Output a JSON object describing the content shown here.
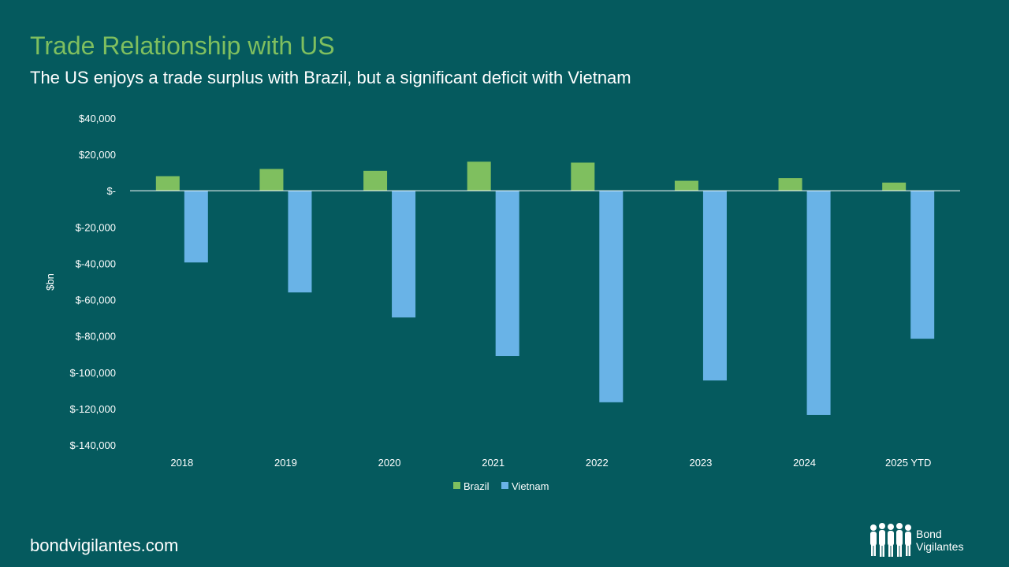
{
  "header": {
    "title": "Trade Relationship with US",
    "subtitle": "The US enjoys a trade surplus with Brazil, but a significant deficit with Vietnam"
  },
  "footer": {
    "url": "bondvigilantes.com",
    "logo_line1": "Bond",
    "logo_line2": "Vigilantes"
  },
  "colors": {
    "background": "#055a5e",
    "title": "#7fbf5f",
    "brazil": "#7fbf5f",
    "vietnam": "#69b3e7",
    "text": "#ffffff"
  },
  "chart_data": {
    "type": "bar",
    "title": "",
    "xlabel": "",
    "ylabel": "$bn",
    "categories": [
      "2018",
      "2019",
      "2020",
      "2021",
      "2022",
      "2023",
      "2024",
      "2025 YTD"
    ],
    "series": [
      {
        "name": "Brazil",
        "values": [
          8000,
          12000,
          11000,
          16000,
          15500,
          5500,
          7000,
          4500
        ]
      },
      {
        "name": "Vietnam",
        "values": [
          -39500,
          -56000,
          -69800,
          -91000,
          -116500,
          -104500,
          -123500,
          -81500
        ]
      }
    ],
    "ylim": [
      -140000,
      40000
    ],
    "yticks": [
      40000,
      20000,
      0,
      -20000,
      -40000,
      -60000,
      -80000,
      -100000,
      -120000,
      -140000
    ],
    "ytick_labels": [
      "$40,000",
      "$20,000",
      "$-",
      "$-20,000",
      "$-40,000",
      "$-60,000",
      "$-80,000",
      "$-100,000",
      "$-120,000",
      "$-140,000"
    ],
    "legend_position": "bottom",
    "grid": false
  }
}
